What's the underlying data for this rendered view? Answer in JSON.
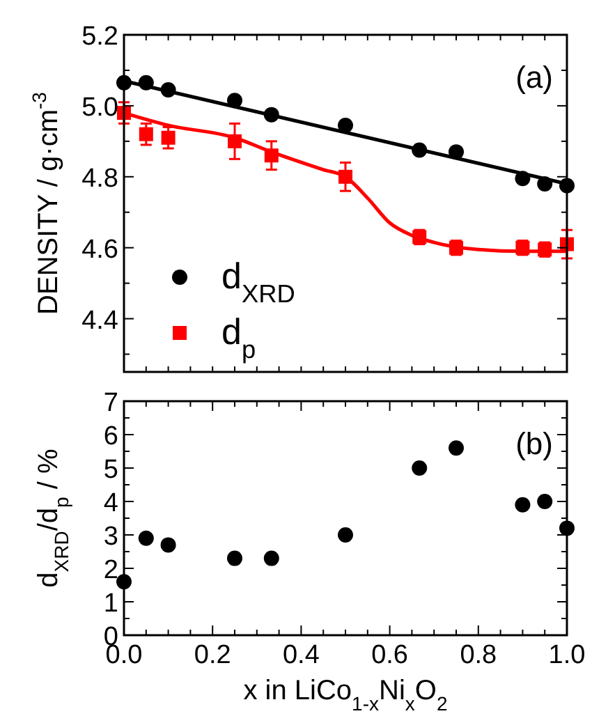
{
  "chart_data": [
    {
      "type": "scatter",
      "ylabel": "DENSITY / g·cm$^{-3}$",
      "annotations": [
        "(a)"
      ],
      "xlim": [
        0,
        1
      ],
      "xticks": [
        {
          "value": 0,
          "label": null
        },
        {
          "value": 0.05,
          "label": null
        },
        {
          "value": 0.1,
          "label": null
        },
        {
          "value": 0.15,
          "label": null
        },
        {
          "value": 0.2,
          "label": null
        },
        {
          "value": 0.25,
          "label": null
        },
        {
          "value": 0.3,
          "label": null
        },
        {
          "value": 0.35,
          "label": null
        },
        {
          "value": 0.4,
          "label": null
        },
        {
          "value": 0.45,
          "label": null
        },
        {
          "value": 0.5,
          "label": null
        },
        {
          "value": 0.55,
          "label": null
        },
        {
          "value": 0.6,
          "label": null
        },
        {
          "value": 0.65,
          "label": null
        },
        {
          "value": 0.7,
          "label": null
        },
        {
          "value": 0.75,
          "label": null
        },
        {
          "value": 0.8,
          "label": null
        },
        {
          "value": 0.85,
          "label": null
        },
        {
          "value": 0.9,
          "label": null
        },
        {
          "value": 0.95,
          "label": null
        },
        {
          "value": 1,
          "label": null
        }
      ],
      "ylim": [
        4.25,
        5.2
      ],
      "yticks": [
        {
          "value": 4.3,
          "label": null
        },
        {
          "value": 4.4,
          "label": "4.4"
        },
        {
          "value": 4.5,
          "label": null
        },
        {
          "value": 4.6,
          "label": "4.6"
        },
        {
          "value": 4.7,
          "label": null
        },
        {
          "value": 4.8,
          "label": "4.8"
        },
        {
          "value": 4.9,
          "label": null
        },
        {
          "value": 5.0,
          "label": "5.0"
        },
        {
          "value": 5.1,
          "label": null
        },
        {
          "value": 5.2,
          "label": "5.2"
        }
      ],
      "tick_labels": "y",
      "legend": "bottom left",
      "series": [
        {
          "name": "d$_{XRD}$",
          "marker": "circle",
          "color": "#000000",
          "x": [
            0,
            0.05,
            0.1,
            0.25,
            0.333,
            0.5,
            0.667,
            0.75,
            0.9,
            0.95,
            1.0
          ],
          "values": [
            5.065,
            5.065,
            5.045,
            5.015,
            4.975,
            4.945,
            4.875,
            4.87,
            4.795,
            4.78,
            4.775
          ]
        },
        {
          "name": "d$_{p}$",
          "marker": "square",
          "color": "#ff0000",
          "x": [
            0,
            0.05,
            0.1,
            0.25,
            0.333,
            0.5,
            0.667,
            0.75,
            0.9,
            0.95,
            1.0
          ],
          "values": [
            4.98,
            4.92,
            4.91,
            4.9,
            4.86,
            4.8,
            4.63,
            4.6,
            4.6,
            4.595,
            4.61
          ],
          "errors": [
            0.03,
            0.03,
            0.03,
            0.05,
            0.04,
            0.04,
            0.02,
            0.02,
            0.02,
            0.02,
            0.04
          ]
        },
        {
          "type": "line",
          "marker": "none",
          "color": "#000000",
          "x": [
            0,
            1
          ],
          "values": [
            5.07,
            4.78
          ]
        },
        {
          "type": "line",
          "marker": "none",
          "color": "#ff0000",
          "x": [
            0,
            0.1,
            0.25,
            0.333,
            0.45,
            0.5,
            0.55,
            0.6,
            0.65,
            0.7,
            0.8,
            0.9,
            1.0
          ],
          "values": [
            4.98,
            4.945,
            4.91,
            4.87,
            4.82,
            4.8,
            4.74,
            4.67,
            4.635,
            4.615,
            4.595,
            4.59,
            4.59
          ]
        }
      ]
    },
    {
      "type": "scatter",
      "xlabel": "x in LiCo$_{1-x}$Ni$_{x}$O$_{2}$",
      "ylabel": "d$_{XRD}$/d$_{p}$ / %",
      "annotations": [
        "(b)"
      ],
      "xlim": [
        0,
        1
      ],
      "xticks": [
        {
          "value": 0,
          "label": "0.0"
        },
        {
          "value": 0.05,
          "label": null
        },
        {
          "value": 0.1,
          "label": null
        },
        {
          "value": 0.15,
          "label": null
        },
        {
          "value": 0.2,
          "label": "0.2"
        },
        {
          "value": 0.25,
          "label": null
        },
        {
          "value": 0.3,
          "label": null
        },
        {
          "value": 0.35,
          "label": null
        },
        {
          "value": 0.4,
          "label": "0.4"
        },
        {
          "value": 0.45,
          "label": null
        },
        {
          "value": 0.5,
          "label": null
        },
        {
          "value": 0.55,
          "label": null
        },
        {
          "value": 0.6,
          "label": "0.6"
        },
        {
          "value": 0.65,
          "label": null
        },
        {
          "value": 0.7,
          "label": null
        },
        {
          "value": 0.75,
          "label": null
        },
        {
          "value": 0.8,
          "label": "0.8"
        },
        {
          "value": 0.85,
          "label": null
        },
        {
          "value": 0.9,
          "label": null
        },
        {
          "value": 0.95,
          "label": null
        },
        {
          "value": 1,
          "label": "1.0"
        }
      ],
      "ylim": [
        0,
        7
      ],
      "yticks": [
        0,
        {
          "value": 0.5,
          "label": null
        },
        1,
        {
          "value": 1.5,
          "label": null
        },
        2,
        {
          "value": 2.5,
          "label": null
        },
        3,
        {
          "value": 3.5,
          "label": null
        },
        4,
        {
          "value": 4.5,
          "label": null
        },
        5,
        {
          "value": 5.5,
          "label": null
        },
        6,
        {
          "value": 6.5,
          "label": null
        },
        7
      ],
      "series": [
        {
          "marker": "circle",
          "color": "#000000",
          "x": [
            0,
            0.05,
            0.1,
            0.25,
            0.333,
            0.5,
            0.667,
            0.75,
            0.9,
            0.95,
            1.0
          ],
          "values": [
            1.6,
            2.9,
            2.7,
            2.3,
            2.3,
            3.0,
            5.0,
            5.6,
            3.9,
            4.0,
            3.2
          ]
        }
      ]
    }
  ]
}
